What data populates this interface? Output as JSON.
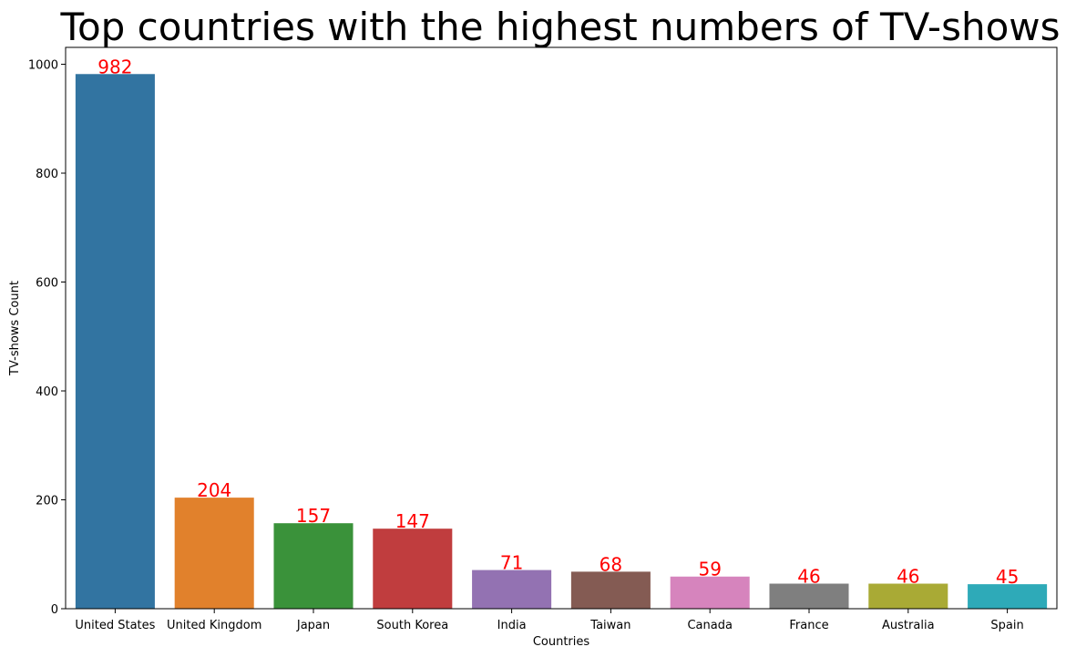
{
  "chart_data": {
    "type": "bar",
    "title": "Top countries with the highest numbers of TV-shows",
    "xlabel": "Countries",
    "ylabel": "TV-shows Count",
    "categories": [
      "United States",
      "United Kingdom",
      "Japan",
      "South Korea",
      "India",
      "Taiwan",
      "Canada",
      "France",
      "Australia",
      "Spain"
    ],
    "values": [
      982,
      204,
      157,
      147,
      71,
      68,
      59,
      46,
      46,
      45
    ],
    "data_labels": [
      "982",
      "204",
      "157",
      "147",
      "71",
      "68",
      "59",
      "46",
      "46",
      "45"
    ],
    "colors": [
      "#3274a1",
      "#e1812c",
      "#3a923a",
      "#c03d3e",
      "#9372b2",
      "#845b53",
      "#d684bd",
      "#7f7f7f",
      "#a9aa35",
      "#2eaab8"
    ],
    "label_color": "#ff0000",
    "ylim": [
      0,
      1031
    ],
    "yticks": [
      0,
      200,
      400,
      600,
      800,
      1000
    ],
    "ytick_labels": [
      "0",
      "200",
      "400",
      "600",
      "800",
      "1000"
    ],
    "grid": false,
    "legend": "none"
  }
}
